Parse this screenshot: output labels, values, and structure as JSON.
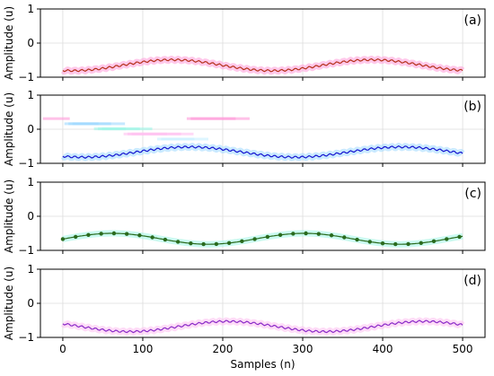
{
  "chart_data": {
    "type": "line",
    "xlabel": "Samples (n)",
    "ylabel": "Amplitude (u)",
    "xlim": [
      -28,
      528
    ],
    "ylim": [
      -1,
      1
    ],
    "xticks": [
      0,
      100,
      200,
      300,
      400,
      500
    ],
    "yticks": [
      -1,
      0,
      1
    ],
    "grid": true,
    "panels": [
      {
        "label": "(a)",
        "line_color": "#b5311b",
        "halo_color": "#ff9ad8",
        "signal": {
          "offset": -0.65,
          "amplitude": 0.16,
          "period": 250,
          "peak_at": 137,
          "ripple": 0.03
        },
        "start": [
          0,
          -0.81
        ],
        "end": [
          500,
          -0.81
        ]
      },
      {
        "label": "(b)",
        "line_color": "#1515d0",
        "halo_color": "#9fd8ff",
        "signal": {
          "offset": -0.67,
          "amplitude": 0.15,
          "period": 265,
          "peak_at": 158,
          "ripple": 0.03
        },
        "start": [
          0,
          -0.82
        ],
        "end": [
          500,
          -0.81
        ]
      },
      {
        "label": "(c)",
        "line_color": "#2a6b1e",
        "halo_color": "#9ff5e6",
        "signal": {
          "offset": -0.66,
          "amplitude": 0.16,
          "period": 240,
          "peak_at": 62,
          "ripple": 0.0
        },
        "markers": true,
        "start": [
          0,
          -0.71
        ],
        "end": [
          500,
          -0.67
        ]
      },
      {
        "label": "(d)",
        "line_color": "#8a2ac8",
        "halo_color": "#ffc0f0",
        "signal": {
          "offset": -0.68,
          "amplitude": 0.15,
          "period": 245,
          "peak_at": 206,
          "ripple": 0.03
        },
        "start": [
          0,
          -0.64
        ],
        "end": [
          500,
          -0.61
        ]
      }
    ]
  }
}
